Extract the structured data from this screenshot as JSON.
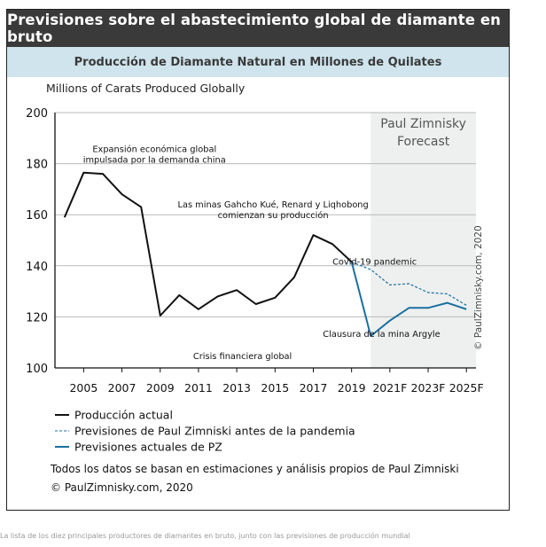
{
  "header": {
    "title": "Previsiones sobre el abastecimiento global de diamante en bruto",
    "subtitle": "Producción de Diamante Natural en Millones de Quilates"
  },
  "chart_data": {
    "type": "line",
    "ylabel": "Millions of Carats Produced Globally",
    "ylim": [
      100,
      200
    ],
    "yticks": [
      100,
      120,
      140,
      160,
      180,
      200
    ],
    "xlim": [
      2003.5,
      2025.5
    ],
    "xticks": [
      {
        "x": 2005,
        "label": "2005"
      },
      {
        "x": 2007,
        "label": "2007"
      },
      {
        "x": 2009,
        "label": "2009"
      },
      {
        "x": 2011,
        "label": "2011"
      },
      {
        "x": 2013,
        "label": "2013"
      },
      {
        "x": 2015,
        "label": "2015"
      },
      {
        "x": 2017,
        "label": "2017"
      },
      {
        "x": 2019,
        "label": "2019"
      },
      {
        "x": 2021,
        "label": "2021F"
      },
      {
        "x": 2023,
        "label": "2023F"
      },
      {
        "x": 2025,
        "label": "2025F"
      }
    ],
    "grid": true,
    "forecast_region": {
      "from": 2020,
      "to": 2025.5,
      "label_line1": "Paul Zimnisky",
      "label_line2": "Forecast",
      "color": "#eef0ef"
    },
    "series": [
      {
        "name": "Producción actual",
        "color": "#111111",
        "style": "solid",
        "points": [
          [
            2004,
            159
          ],
          [
            2005,
            176.5
          ],
          [
            2006,
            176
          ],
          [
            2007,
            168
          ],
          [
            2008,
            163
          ],
          [
            2009,
            120.5
          ],
          [
            2010,
            128.5
          ],
          [
            2011,
            123
          ],
          [
            2012,
            128
          ],
          [
            2013,
            130.5
          ],
          [
            2014,
            125
          ],
          [
            2015,
            127.5
          ],
          [
            2016,
            135.5
          ],
          [
            2017,
            152
          ],
          [
            2018,
            148.5
          ],
          [
            2019,
            141.5
          ]
        ]
      },
      {
        "name": "Previsiones de Paul Zimniski antes de la pandemia",
        "color": "#1b6fa0",
        "style": "dashed",
        "points": [
          [
            2019,
            141.5
          ],
          [
            2020,
            138.5
          ],
          [
            2021,
            132.5
          ],
          [
            2022,
            133
          ],
          [
            2023,
            129.5
          ],
          [
            2024,
            129
          ],
          [
            2025,
            124.5
          ]
        ]
      },
      {
        "name": "Previsiones actuales de PZ",
        "color": "#1b6fa0",
        "style": "solid",
        "points": [
          [
            2019,
            141.5
          ],
          [
            2020,
            112.5
          ],
          [
            2021,
            118.5
          ],
          [
            2022,
            123.5
          ],
          [
            2023,
            123.5
          ],
          [
            2024,
            125.5
          ],
          [
            2025,
            123
          ]
        ]
      }
    ],
    "annotations": [
      {
        "x": 2008.7,
        "y": 184.5,
        "lines": [
          "Expansión económica global",
          "impulsada por la demanda china"
        ],
        "align": "middle"
      },
      {
        "x": 2013.3,
        "y": 103.5,
        "lines": [
          "Crisis financiera global"
        ],
        "align": "middle"
      },
      {
        "x": 2014.9,
        "y": 162.8,
        "lines": [
          "Las minas Gahcho Kué, Renard y Liqhobong",
          "comienzan su producción"
        ],
        "align": "middle"
      },
      {
        "x": 2018.0,
        "y": 140.4,
        "lines": [
          "Covid-19 pandemic"
        ],
        "align": "start"
      },
      {
        "x": 2017.5,
        "y": 112.2,
        "lines": [
          "Clausura de la mina Argyle"
        ],
        "align": "start"
      }
    ]
  },
  "legend": {
    "items": [
      "Producción actual",
      "Previsiones de Paul Zimniski antes de la pandemia",
      "Previsiones actuales de PZ"
    ]
  },
  "notes": {
    "line1": "Todos los datos se basan en estimaciones y análisis propios de Paul Zimniski",
    "line2": "© PaulZimnisky.com, 2020"
  },
  "watermark": "© PaulZimnisky.com, 2020",
  "caption": "La lista de los diez principales productores de diamantes en bruto, junto con las previsiones de producción mundial"
}
